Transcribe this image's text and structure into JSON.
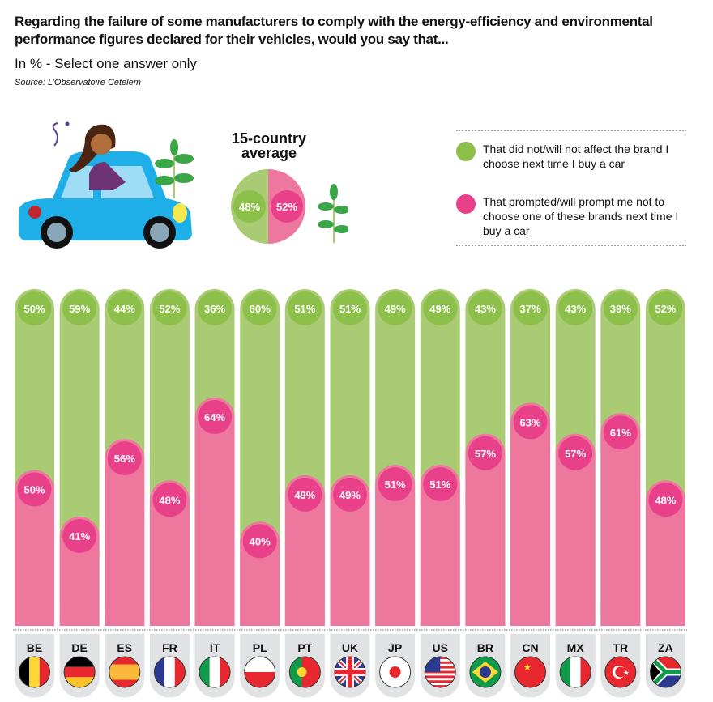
{
  "header": {
    "title": "Regarding the failure of some manufacturers to comply with the energy-efficiency and environmental performance figures declared for their vehicles, would you say that...",
    "subtitle": "In % - Select one answer only",
    "source": "Source: L’Observatoire Cetelem"
  },
  "average": {
    "label": "15-country average",
    "green": "48%",
    "pink": "52%"
  },
  "legend": [
    {
      "label": "That did not/will not affect the brand I choose next time I buy a car",
      "color": "#8dc04a"
    },
    {
      "label": "That prompted/will prompt me not to choose one of these brands next time I buy a car",
      "color": "#e9408a"
    }
  ],
  "colors": {
    "green_bar": "#a9cb73",
    "green_dot": "#8dc04a",
    "pink_bar": "#ee779d",
    "pink_dot": "#e9408a",
    "label_bg": "#e1e2e3"
  },
  "chart_data": {
    "type": "bar",
    "stacked": true,
    "ylim": [
      0,
      100
    ],
    "categories": [
      "BE",
      "DE",
      "ES",
      "FR",
      "IT",
      "PL",
      "PT",
      "UK",
      "JP",
      "US",
      "BR",
      "CN",
      "MX",
      "TR",
      "ZA"
    ],
    "series": [
      {
        "name": "That did not/will not affect the brand I choose next time I buy a car",
        "values": [
          50,
          59,
          44,
          52,
          36,
          60,
          51,
          51,
          49,
          49,
          43,
          37,
          43,
          39,
          52
        ]
      },
      {
        "name": "That prompted/will prompt me not to choose one of these brands next time I buy a car",
        "values": [
          50,
          41,
          56,
          48,
          64,
          40,
          49,
          49,
          51,
          51,
          57,
          63,
          57,
          61,
          48
        ]
      }
    ]
  }
}
